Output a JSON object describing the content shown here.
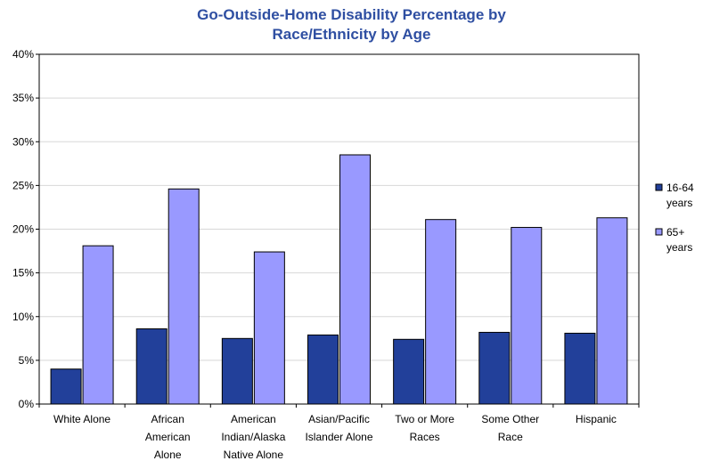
{
  "chart_data": {
    "type": "bar",
    "title": [
      "Go-Outside-Home Disability Percentage by",
      "Race/Ethnicity by Age"
    ],
    "categories": [
      [
        "White Alone"
      ],
      [
        "African",
        "American",
        "Alone"
      ],
      [
        "American",
        "Indian/Alaska",
        "Native Alone"
      ],
      [
        "Asian/Pacific",
        "Islander Alone"
      ],
      [
        "Two or More",
        "Races"
      ],
      [
        "Some Other",
        "Race"
      ],
      [
        "Hispanic"
      ]
    ],
    "series": [
      {
        "name": [
          "16-64",
          "years"
        ],
        "color": "#22409a",
        "values": [
          4.0,
          8.6,
          7.5,
          7.9,
          7.4,
          8.2,
          8.1
        ]
      },
      {
        "name": [
          "65+",
          "years"
        ],
        "color": "#9999ff",
        "values": [
          18.1,
          24.6,
          17.4,
          28.5,
          21.1,
          20.2,
          21.3
        ]
      }
    ],
    "yticks": [
      "0%",
      "5%",
      "10%",
      "15%",
      "20%",
      "25%",
      "30%",
      "35%",
      "40%"
    ],
    "ylim": [
      0,
      40
    ],
    "grid": true,
    "legend": "right"
  }
}
